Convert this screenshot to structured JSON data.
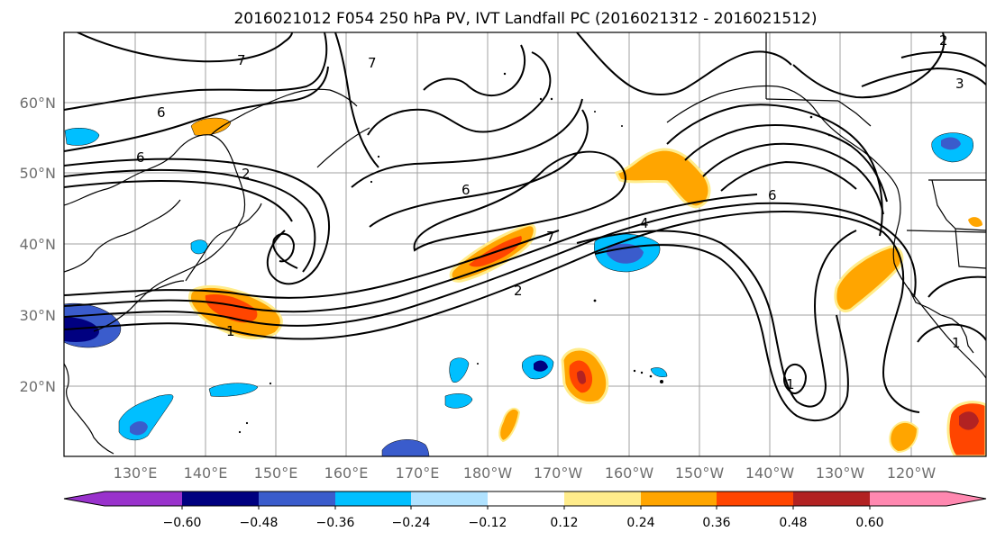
{
  "title": "2016021012 F054 250 hPa PV, IVT Landfall PC (2016021312 - 2016021512)",
  "map": {
    "lat_ticks": [
      "60°N",
      "50°N",
      "40°N",
      "30°N",
      "20°N"
    ],
    "lon_ticks": [
      "130°E",
      "140°E",
      "150°E",
      "160°E",
      "170°E",
      "180°W",
      "170°W",
      "160°W",
      "150°W",
      "140°W",
      "130°W",
      "120°W"
    ],
    "contour_labels": [
      "6",
      "6",
      "7",
      "2",
      "6",
      "7",
      "2",
      "4",
      "1",
      "6",
      "7",
      "1",
      "3",
      "2",
      "1"
    ]
  },
  "colorbar": {
    "ticks": [
      "−0.60",
      "−0.48",
      "−0.36",
      "−0.24",
      "−0.12",
      "0.12",
      "0.24",
      "0.36",
      "0.48",
      "0.60"
    ],
    "colors": [
      "#9932cc",
      "#000080",
      "#3a5ccc",
      "#00bfff",
      "#b0e2ff",
      "#ffffff",
      "#ffec8b",
      "#ffa500",
      "#ff4500",
      "#b22222",
      "#ff88b0"
    ]
  }
}
